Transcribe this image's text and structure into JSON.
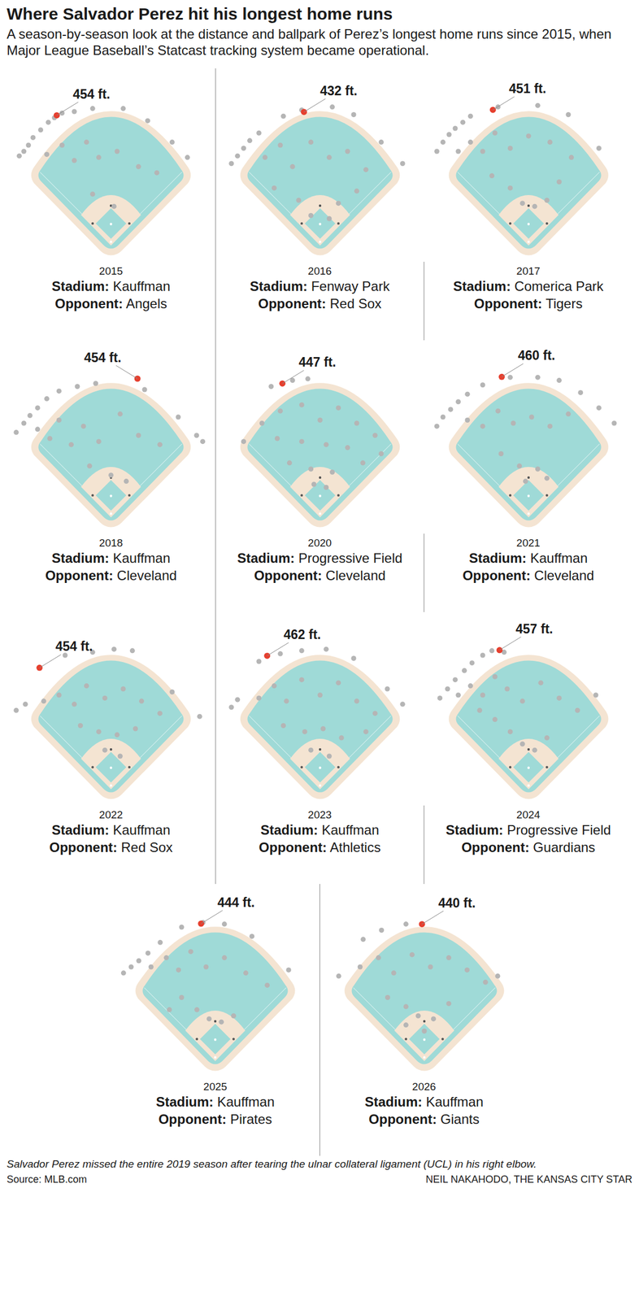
{
  "title": "Where Salvador Perez hit his longest home runs",
  "subtitle": "A season-by-season look at the distance and ballpark of Perez’s longest home runs since 2015, when Major League Baseball’s Statcast tracking system became operational.",
  "labels": {
    "stadium": "Stadium:",
    "opponent": "Opponent:"
  },
  "note": "Salvador Perez missed the entire 2019 season after tearing the ulnar collateral ligament (UCL) in his right elbow.",
  "source": "Source: MLB.com",
  "credit": "NEIL NAKAHODO, THE KANSAS CITY STAR",
  "chart_data": [
    {
      "type": "scatter",
      "title": "2015",
      "stadium": "Kauffman",
      "opponent": "Angels",
      "xlim": [
        -330,
        330
      ],
      "ylim": [
        -50,
        560
      ],
      "tick_labels": false,
      "points": {
        "color": "#b5b5b5",
        "x": [
          -300,
          -285,
          -270,
          -255,
          -230,
          -205,
          -185,
          -160,
          -120,
          -60,
          40,
          120,
          200,
          250,
          -210,
          -160,
          -120,
          -80,
          -40,
          20,
          90,
          150,
          -60,
          10
        ],
        "y": [
          285,
          300,
          320,
          345,
          370,
          395,
          410,
          425,
          430,
          440,
          440,
          400,
          330,
          280,
          290,
          320,
          270,
          330,
          280,
          300,
          250,
          230,
          160,
          120
        ]
      },
      "longest": {
        "distance": 454,
        "angle": -23,
        "label": "454 ft.",
        "color": "#e63f2e"
      }
    },
    {
      "type": "scatter",
      "title": "2016",
      "stadium": "Fenway Park",
      "opponent": "Red Sox",
      "xlim": [
        -330,
        330
      ],
      "ylim": [
        -50,
        560
      ],
      "tick_labels": false,
      "points": {
        "color": "#b5b5b5",
        "x": [
          -290,
          -270,
          -250,
          -230,
          -200,
          -120,
          -60,
          40,
          110,
          200,
          270,
          -180,
          -130,
          -90,
          -30,
          30,
          90,
          150,
          -150,
          -70,
          -30,
          30,
          60,
          120
        ],
        "y": [
          260,
          285,
          310,
          335,
          360,
          415,
          435,
          445,
          420,
          330,
          260,
          280,
          320,
          250,
          330,
          280,
          300,
          240,
          180,
          140,
          90,
          80,
          130,
          170
        ]
      },
      "longest": {
        "distance": 432,
        "angle": -7,
        "label": "432 ft.",
        "color": "#e63f2e"
      }
    },
    {
      "type": "scatter",
      "title": "2017",
      "stadium": "Comerica Park",
      "opponent": "Tigers",
      "xlim": [
        -330,
        330
      ],
      "ylim": [
        -50,
        560
      ],
      "tick_labels": false,
      "points": {
        "color": "#b5b5b5",
        "x": [
          -300,
          -280,
          -260,
          -240,
          -215,
          -190,
          -100,
          30,
          130,
          230,
          -230,
          -190,
          -150,
          -110,
          -60,
          0,
          70,
          140,
          -120,
          -60,
          -20,
          20,
          60,
          100
        ],
        "y": [
          300,
          330,
          355,
          375,
          395,
          415,
          445,
          450,
          420,
          310,
          300,
          330,
          300,
          360,
          310,
          350,
          330,
          280,
          220,
          180,
          130,
          120,
          140,
          200
        ]
      },
      "longest": {
        "distance": 451,
        "angle": -15,
        "label": "451 ft.",
        "color": "#e63f2e"
      }
    },
    {
      "type": "scatter",
      "title": "2018",
      "stadium": "Kauffman",
      "opponent": "Cleveland",
      "xlim": [
        -330,
        330
      ],
      "ylim": [
        -50,
        560
      ],
      "tick_labels": false,
      "points": {
        "color": "#b5b5b5",
        "x": [
          -310,
          -285,
          -265,
          -240,
          -210,
          -170,
          -110,
          -50,
          110,
          220,
          280,
          300,
          -240,
          -200,
          -170,
          -130,
          -90,
          -40,
          30,
          90,
          160,
          -70,
          0,
          50
        ],
        "y": [
          270,
          300,
          325,
          350,
          380,
          405,
          420,
          430,
          410,
          320,
          260,
          240,
          280,
          250,
          310,
          230,
          290,
          240,
          330,
          260,
          230,
          160,
          130,
          110
        ]
      },
      "longest": {
        "distance": 454,
        "angle": 11,
        "label": "454 ft.",
        "color": "#e63f2e"
      }
    },
    {
      "type": "scatter",
      "title": "2020",
      "stadium": "Progressive Field",
      "opponent": "Cleveland",
      "xlim": [
        -330,
        330
      ],
      "ylim": [
        -50,
        560
      ],
      "tick_labels": false,
      "points": {
        "color": "#b5b5b5",
        "x": [
          -250,
          -160,
          -90,
          -40,
          -190,
          -130,
          -60,
          0,
          60,
          120,
          180,
          -140,
          -60,
          20,
          90,
          -100,
          -30,
          40,
          -20,
          20,
          200,
          140
        ],
        "y": [
          240,
          420,
          440,
          445,
          300,
          340,
          360,
          310,
          350,
          300,
          260,
          250,
          240,
          230,
          220,
          170,
          150,
          140,
          100,
          90,
          200,
          170
        ]
      },
      "longest": {
        "distance": 447,
        "angle": -16,
        "label": "447 ft.",
        "color": "#e63f2e"
      }
    },
    {
      "type": "scatter",
      "title": "2021",
      "stadium": "Kauffman",
      "opponent": "Cleveland",
      "xlim": [
        -330,
        330
      ],
      "ylim": [
        -50,
        560
      ],
      "tick_labels": false,
      "points": {
        "color": "#b5b5b5",
        "x": [
          -300,
          -280,
          -255,
          -230,
          -200,
          -150,
          -60,
          30,
          100,
          170,
          230,
          280,
          -200,
          -150,
          -100,
          -50,
          10,
          70,
          130,
          -90,
          -30,
          30,
          -10,
          60
        ],
        "y": [
          290,
          320,
          345,
          370,
          395,
          425,
          450,
          450,
          440,
          400,
          350,
          300,
          310,
          290,
          340,
          300,
          320,
          290,
          330,
          200,
          160,
          150,
          110,
          120
        ]
      },
      "longest": {
        "distance": 460,
        "angle": -11,
        "label": "460 ft.",
        "color": "#e63f2e"
      }
    },
    {
      "type": "scatter",
      "title": "2022",
      "stadium": "Kauffman",
      "opponent": "Red Sox",
      "xlim": [
        -330,
        330
      ],
      "ylim": [
        -50,
        560
      ],
      "tick_labels": false,
      "points": {
        "color": "#b5b5b5",
        "x": [
          -310,
          -280,
          -150,
          -60,
          10,
          70,
          200,
          290,
          -220,
          -170,
          -120,
          -80,
          -20,
          40,
          100,
          160,
          -100,
          -40,
          20,
          80,
          -20,
          30
        ],
        "y": [
          250,
          270,
          430,
          440,
          450,
          445,
          310,
          230,
          280,
          300,
          270,
          330,
          290,
          320,
          280,
          240,
          200,
          180,
          170,
          190,
          120,
          100
        ]
      },
      "longest": {
        "distance": 454,
        "angle": -31,
        "label": "454 ft.",
        "color": "#e63f2e"
      }
    },
    {
      "type": "scatter",
      "title": "2023",
      "stadium": "Kauffman",
      "opponent": "Athletics",
      "xlim": [
        -330,
        330
      ],
      "ylim": [
        -50,
        560
      ],
      "tick_labels": false,
      "points": {
        "color": "#b5b5b5",
        "x": [
          -290,
          -270,
          -200,
          -130,
          -60,
          20,
          110,
          220,
          270,
          -200,
          -150,
          -110,
          -60,
          0,
          60,
          120,
          180,
          -120,
          -50,
          10,
          70,
          -30,
          30,
          150
        ],
        "y": [
          260,
          285,
          410,
          435,
          445,
          450,
          420,
          320,
          270,
          290,
          330,
          280,
          350,
          300,
          340,
          280,
          240,
          200,
          180,
          190,
          160,
          120,
          100,
          180
        ]
      },
      "longest": {
        "distance": 462,
        "angle": -22,
        "label": "462 ft.",
        "color": "#e63f2e"
      }
    },
    {
      "type": "scatter",
      "title": "2024",
      "stadium": "Progressive Field",
      "opponent": "Guardians",
      "xlim": [
        -330,
        330
      ],
      "ylim": [
        -50,
        560
      ],
      "tick_labels": false,
      "points": {
        "color": "#b5b5b5",
        "x": [
          -290,
          -265,
          -240,
          -210,
          -185,
          -150,
          -120,
          -80,
          -230,
          -190,
          -150,
          -110,
          -70,
          -20,
          40,
          100,
          160,
          -110,
          -60,
          -20,
          20,
          60,
          -160,
          220
        ],
        "y": [
          290,
          320,
          350,
          380,
          405,
          430,
          445,
          440,
          300,
          330,
          300,
          360,
          320,
          280,
          340,
          290,
          250,
          220,
          180,
          140,
          120,
          160,
          250,
          300
        ]
      },
      "longest": {
        "distance": 457,
        "angle": -12,
        "label": "457 ft.",
        "color": "#e63f2e"
      }
    },
    {
      "type": "scatter",
      "title": "2025",
      "stadium": "Kauffman",
      "opponent": "Pirates",
      "xlim": [
        -330,
        330
      ],
      "ylim": [
        -50,
        560
      ],
      "tick_labels": false,
      "points": {
        "color": "#b5b5b5",
        "x": [
          -300,
          -275,
          -250,
          -220,
          -180,
          -110,
          -40,
          30,
          120,
          240,
          -210,
          -160,
          -120,
          -80,
          -30,
          30,
          100,
          170,
          -110,
          -60,
          -20,
          20,
          60,
          -150
        ],
        "y": [
          280,
          300,
          320,
          345,
          380,
          430,
          445,
          440,
          400,
          290,
          300,
          330,
          290,
          350,
          300,
          330,
          280,
          240,
          200,
          160,
          130,
          120,
          140,
          160
        ]
      },
      "longest": {
        "distance": 444,
        "angle": -6,
        "label": "444 ft.",
        "color": "#e63f2e"
      }
    },
    {
      "type": "scatter",
      "title": "2026",
      "stadium": "Kauffman",
      "opponent": "Giants",
      "xlim": [
        -330,
        330
      ],
      "ylim": [
        -50,
        560
      ],
      "tick_labels": false,
      "points": {
        "color": "#b5b5b5",
        "x": [
          -280,
          -200,
          -140,
          -60,
          240,
          -210,
          -150,
          -100,
          -40,
          20,
          80,
          140,
          200,
          -120,
          -60,
          -20,
          30,
          80,
          -60,
          0
        ],
        "y": [
          270,
          390,
          420,
          440,
          270,
          300,
          330,
          280,
          340,
          300,
          330,
          290,
          250,
          200,
          170,
          140,
          130,
          180,
          110,
          90
        ]
      },
      "longest": {
        "distance": 440,
        "angle": -1,
        "label": "440 ft.",
        "color": "#e63f2e"
      }
    }
  ]
}
